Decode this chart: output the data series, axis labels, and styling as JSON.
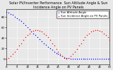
{
  "title": "Solar PV/Inverter Performance  Sun Altitude Angle & Sun Incidence Angle on PV Panels",
  "legend_labels": [
    "Sun Altitude Angle",
    "Sun Incidence Angle on PV Panels"
  ],
  "legend_colors": [
    "#0000FF",
    "#FF0000"
  ],
  "ylim": [
    -10,
    95
  ],
  "xlim": [
    0,
    50
  ],
  "background_color": "#e8e8e8",
  "grid_color": "#ffffff",
  "title_fontsize": 3.5,
  "tick_fontsize": 2.8,
  "legend_fontsize": 2.8,
  "marker_size": 1.0,
  "blue_data_x": [
    0,
    1,
    2,
    3,
    4,
    5,
    6,
    7,
    8,
    9,
    10,
    11,
    12,
    13,
    14,
    15,
    16,
    17,
    18,
    19,
    20,
    21,
    22,
    23,
    24,
    25,
    26,
    27,
    28,
    29,
    30,
    31,
    32,
    33,
    34,
    35,
    36,
    37,
    38,
    39,
    40,
    41,
    42,
    43,
    44,
    45,
    46,
    47,
    48,
    49,
    50
  ],
  "blue_data_y": [
    90,
    88,
    86,
    84,
    81,
    78,
    75,
    72,
    68,
    65,
    61,
    57,
    53,
    49,
    45,
    41,
    38,
    34,
    30,
    27,
    23,
    20,
    17,
    14,
    11,
    9,
    7,
    5,
    3,
    2,
    1,
    0,
    0,
    0,
    0,
    0,
    0,
    0,
    0,
    0,
    0,
    0,
    0,
    0,
    0,
    0,
    0,
    0,
    0,
    0,
    0
  ],
  "red_data_x": [
    0,
    1,
    2,
    3,
    4,
    5,
    6,
    7,
    8,
    9,
    10,
    11,
    12,
    13,
    14,
    15,
    16,
    17,
    18,
    19,
    20,
    21,
    22,
    23,
    24,
    25,
    26,
    27,
    28,
    29,
    30,
    31,
    32,
    33,
    34,
    35,
    36,
    37,
    38,
    39,
    40,
    41,
    42,
    43,
    44,
    45,
    46,
    47,
    48,
    49,
    50
  ],
  "red_data_y": [
    0,
    2,
    5,
    9,
    14,
    19,
    25,
    30,
    36,
    41,
    45,
    49,
    52,
    54,
    55,
    55,
    54,
    52,
    49,
    45,
    41,
    36,
    30,
    25,
    19,
    14,
    9,
    5,
    2,
    0,
    2,
    5,
    9,
    14,
    19,
    25,
    30,
    36,
    41,
    45,
    49,
    52,
    54,
    55,
    55,
    54,
    52,
    49,
    45,
    41,
    36
  ]
}
